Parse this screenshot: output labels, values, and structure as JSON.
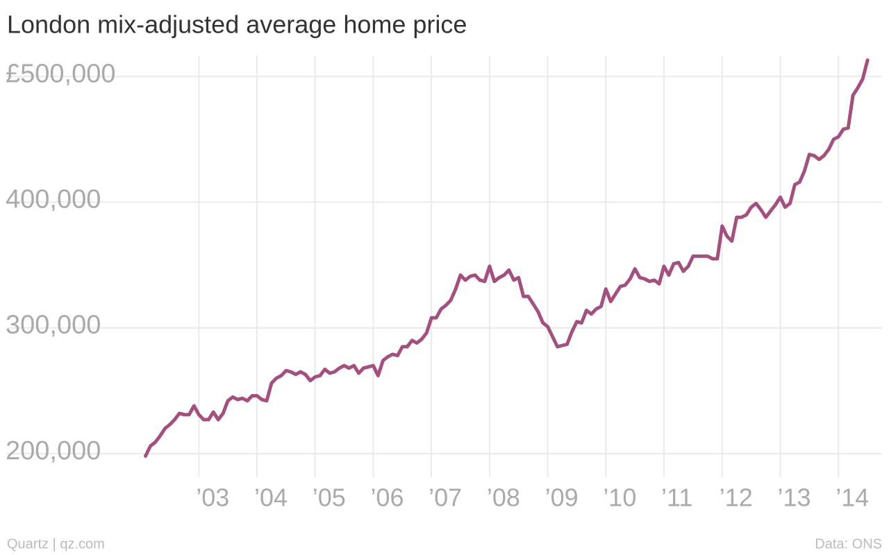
{
  "chart_data": {
    "type": "line",
    "title": "London mix-adjusted average home price",
    "source": "Quartz | qz.com",
    "credit": "Data: ONS",
    "color": "#a4507f",
    "grid": true,
    "x": [
      2002.083,
      2002.167,
      2002.25,
      2002.333,
      2002.417,
      2002.5,
      2002.583,
      2002.667,
      2002.75,
      2002.833,
      2002.917,
      2003,
      2003.083,
      2003.167,
      2003.25,
      2003.333,
      2003.417,
      2003.5,
      2003.583,
      2003.667,
      2003.75,
      2003.833,
      2003.917,
      2004,
      2004.083,
      2004.167,
      2004.25,
      2004.333,
      2004.417,
      2004.5,
      2004.583,
      2004.667,
      2004.75,
      2004.833,
      2004.917,
      2005,
      2005.083,
      2005.167,
      2005.25,
      2005.333,
      2005.417,
      2005.5,
      2005.583,
      2005.667,
      2005.75,
      2005.833,
      2005.917,
      2006,
      2006.083,
      2006.167,
      2006.25,
      2006.333,
      2006.417,
      2006.5,
      2006.583,
      2006.667,
      2006.75,
      2006.833,
      2006.917,
      2007,
      2007.083,
      2007.167,
      2007.25,
      2007.333,
      2007.417,
      2007.5,
      2007.583,
      2007.667,
      2007.75,
      2007.833,
      2007.917,
      2008,
      2008.083,
      2008.167,
      2008.25,
      2008.333,
      2008.417,
      2008.5,
      2008.583,
      2008.667,
      2008.75,
      2008.833,
      2008.917,
      2009,
      2009.083,
      2009.167,
      2009.25,
      2009.333,
      2009.417,
      2009.5,
      2009.583,
      2009.667,
      2009.75,
      2009.833,
      2009.917,
      2010,
      2010.083,
      2010.167,
      2010.25,
      2010.333,
      2010.417,
      2010.5,
      2010.583,
      2010.667,
      2010.75,
      2010.833,
      2010.917,
      2011,
      2011.083,
      2011.167,
      2011.25,
      2011.333,
      2011.417,
      2011.5,
      2011.583,
      2011.667,
      2011.75,
      2011.833,
      2011.917,
      2012,
      2012.083,
      2012.167,
      2012.25,
      2012.333,
      2012.417,
      2012.5,
      2012.583,
      2012.667,
      2012.75,
      2012.833,
      2012.917,
      2013,
      2013.083,
      2013.167,
      2013.25,
      2013.333,
      2013.417,
      2013.5,
      2013.583,
      2013.667,
      2013.75,
      2013.833,
      2013.917,
      2014,
      2014.083,
      2014.167,
      2014.25,
      2014.333,
      2014.417,
      2014.5
    ],
    "values": [
      198000,
      206000,
      209000,
      214000,
      220000,
      223000,
      227000,
      232000,
      231000,
      231000,
      238000,
      231000,
      227000,
      227000,
      233000,
      227000,
      232000,
      242000,
      245000,
      243000,
      244000,
      242000,
      246000,
      246000,
      243000,
      242000,
      256000,
      260000,
      262000,
      266000,
      265000,
      263000,
      265000,
      263000,
      258000,
      261000,
      262000,
      267000,
      264000,
      265000,
      268000,
      270000,
      268000,
      270000,
      264000,
      268000,
      269000,
      270000,
      262000,
      274000,
      277000,
      279000,
      278000,
      285000,
      285000,
      290000,
      288000,
      291000,
      296000,
      308000,
      308000,
      315000,
      318000,
      322000,
      331000,
      342000,
      338000,
      341000,
      342000,
      338000,
      337000,
      349000,
      337000,
      340000,
      342000,
      346000,
      338000,
      340000,
      325000,
      325000,
      319000,
      313000,
      304000,
      301000,
      293000,
      285000,
      286000,
      287000,
      297000,
      305000,
      304000,
      314000,
      311000,
      315000,
      317000,
      331000,
      321000,
      327000,
      333000,
      334000,
      339000,
      347000,
      340000,
      339000,
      337000,
      338000,
      335000,
      349000,
      342000,
      351000,
      352000,
      345000,
      349000,
      357000,
      357000,
      357000,
      357000,
      355000,
      355000,
      381000,
      373000,
      369000,
      388000,
      388000,
      390000,
      396000,
      399000,
      394000,
      388000,
      393000,
      398000,
      404000,
      396000,
      399000,
      414000,
      416000,
      425000,
      438000,
      437000,
      434000,
      437000,
      442000,
      450000,
      452000,
      458000,
      459000,
      485000,
      491000,
      498000,
      513000
    ],
    "xlim": [
      2001.85,
      2014.75
    ],
    "xticks": [
      {
        "value": 2003,
        "label": "’03"
      },
      {
        "value": 2004,
        "label": "’04"
      },
      {
        "value": 2005,
        "label": "’05"
      },
      {
        "value": 2006,
        "label": "’06"
      },
      {
        "value": 2007,
        "label": "’07"
      },
      {
        "value": 2008,
        "label": "’08"
      },
      {
        "value": 2009,
        "label": "’09"
      },
      {
        "value": 2010,
        "label": "’10"
      },
      {
        "value": 2011,
        "label": "’11"
      },
      {
        "value": 2012,
        "label": "’12"
      },
      {
        "value": 2013,
        "label": "’13"
      },
      {
        "value": 2014,
        "label": "’14"
      }
    ],
    "ylim": [
      185000,
      520000
    ],
    "yticks": [
      {
        "value": 200000,
        "label": "200,000"
      },
      {
        "value": 300000,
        "label": "300,000"
      },
      {
        "value": 400000,
        "label": "400,000"
      },
      {
        "value": 500000,
        "label": "£500,000"
      }
    ]
  }
}
